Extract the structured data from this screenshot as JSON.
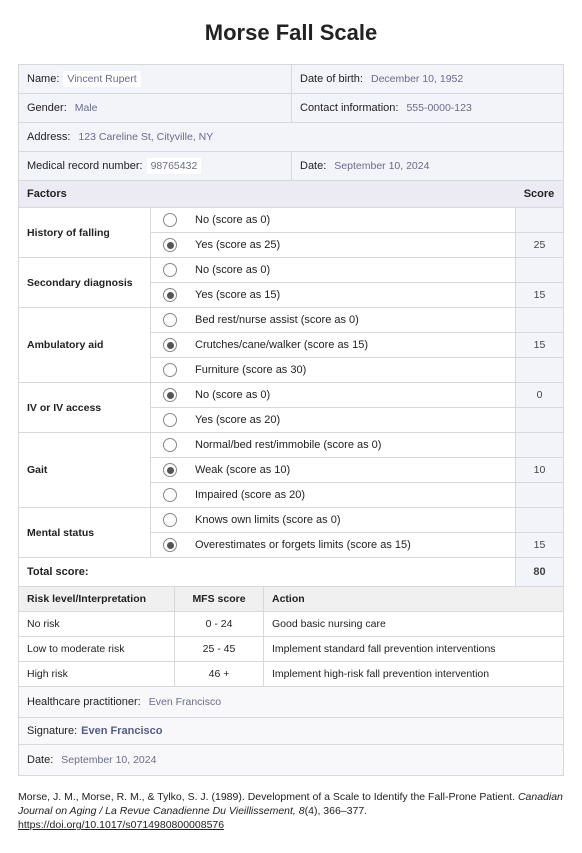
{
  "title": "Morse Fall Scale",
  "info": {
    "name_label": "Name:",
    "name": "Vincent Rupert",
    "dob_label": "Date of birth:",
    "dob": "December 10, 1952",
    "gender_label": "Gender:",
    "gender": "Male",
    "contact_label": "Contact information:",
    "contact": "555-0000-123",
    "address_label": "Address:",
    "address": "123 Careline St, Cityville, NY",
    "mrn_label": "Medical record number:",
    "mrn": "98765432",
    "date_label": "Date:",
    "date": "September 10, 2024"
  },
  "header": {
    "factors": "Factors",
    "score": "Score"
  },
  "factors": [
    {
      "name": "History of falling",
      "options": [
        {
          "label": "No (score as 0)",
          "checked": false,
          "score": ""
        },
        {
          "label": "Yes (score as 25)",
          "checked": true,
          "score": "25"
        }
      ]
    },
    {
      "name": "Secondary diagnosis",
      "options": [
        {
          "label": "No (score as 0)",
          "checked": false,
          "score": ""
        },
        {
          "label": "Yes (score as 15)",
          "checked": true,
          "score": "15"
        }
      ]
    },
    {
      "name": "Ambulatory aid",
      "options": [
        {
          "label": "Bed rest/nurse assist (score as 0)",
          "checked": false,
          "score": ""
        },
        {
          "label": "Crutches/cane/walker (score as 15)",
          "checked": true,
          "score": "15"
        },
        {
          "label": "Furniture (score as 30)",
          "checked": false,
          "score": ""
        }
      ]
    },
    {
      "name": "IV or IV access",
      "options": [
        {
          "label": "No (score as 0)",
          "checked": true,
          "score": "0"
        },
        {
          "label": "Yes (score as 20)",
          "checked": false,
          "score": ""
        }
      ]
    },
    {
      "name": "Gait",
      "options": [
        {
          "label": "Normal/bed rest/immobile (score as 0)",
          "checked": false,
          "score": ""
        },
        {
          "label": "Weak (score as 10)",
          "checked": true,
          "score": "10"
        },
        {
          "label": "Impaired (score as 20)",
          "checked": false,
          "score": ""
        }
      ]
    },
    {
      "name": "Mental status",
      "options": [
        {
          "label": "Knows own limits (score as 0)",
          "checked": false,
          "score": ""
        },
        {
          "label": "Overestimates or forgets limits (score as 15)",
          "checked": true,
          "score": "15"
        }
      ]
    }
  ],
  "total": {
    "label": "Total score:",
    "value": "80"
  },
  "interp": {
    "header": {
      "risk": "Risk level/Interpretation",
      "mfs": "MFS score",
      "action": "Action"
    },
    "rows": [
      {
        "risk": "No risk",
        "mfs": "0 - 24",
        "action": "Good basic nursing care"
      },
      {
        "risk": "Low to moderate risk",
        "mfs": "25 - 45",
        "action": "Implement standard fall prevention interventions"
      },
      {
        "risk": "High risk",
        "mfs": "46 +",
        "action": "Implement high-risk fall prevention intervention"
      }
    ]
  },
  "foot": {
    "hp_label": "Healthcare practitioner:",
    "hp": "Even Francisco",
    "sig_label": "Signature:",
    "sig": "Even Francisco",
    "date_label": "Date:",
    "date": "September 10, 2024"
  },
  "citation": {
    "pre": "Morse, J. M., Morse, R. M., & Tylko, S. J. (1989). Development of a Scale to Identify the Fall-Prone Patient. ",
    "ital": "Canadian Journal on Aging / La Revue Canadienne Du Vieillissement, 8",
    "post": "(4), 366–377.",
    "doi": "https://doi.org/10.1017/s0714980800008576"
  }
}
